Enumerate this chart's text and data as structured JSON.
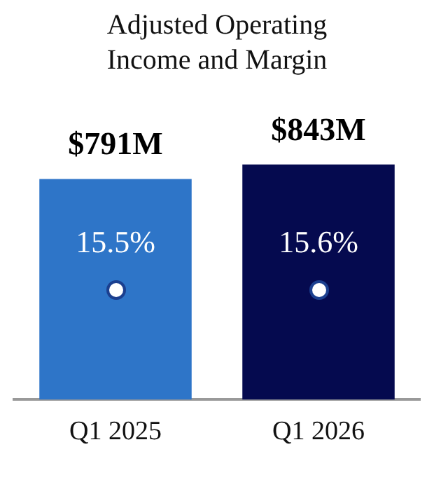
{
  "chart_data": {
    "type": "bar",
    "title": "Adjusted Operating Income and Margin",
    "categories": [
      "Q1 2025",
      "Q1 2026"
    ],
    "series": [
      {
        "colors": [
          "#2e75c8",
          "#050a4f"
        ],
        "values": [
          791,
          843
        ],
        "value_labels": [
          "$791M",
          "$843M"
        ]
      }
    ],
    "annotations": [
      "15.5%",
      "15.6%"
    ],
    "grid": false,
    "legend": false
  }
}
